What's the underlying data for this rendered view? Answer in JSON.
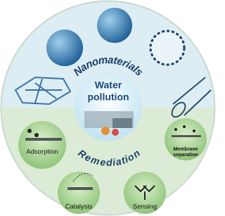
{
  "arcs": {
    "top": "Nanomaterials",
    "bottom": "Remediation"
  },
  "center": {
    "title_lines": [
      "Water",
      "pollution"
    ]
  },
  "methods": [
    {
      "label_lines": [
        "Adsorption"
      ]
    },
    {
      "label_lines": [
        "Membrane",
        "separation"
      ]
    },
    {
      "label_lines": [
        "Catalysis"
      ]
    },
    {
      "label_lines": [
        "Sensing"
      ]
    }
  ]
}
